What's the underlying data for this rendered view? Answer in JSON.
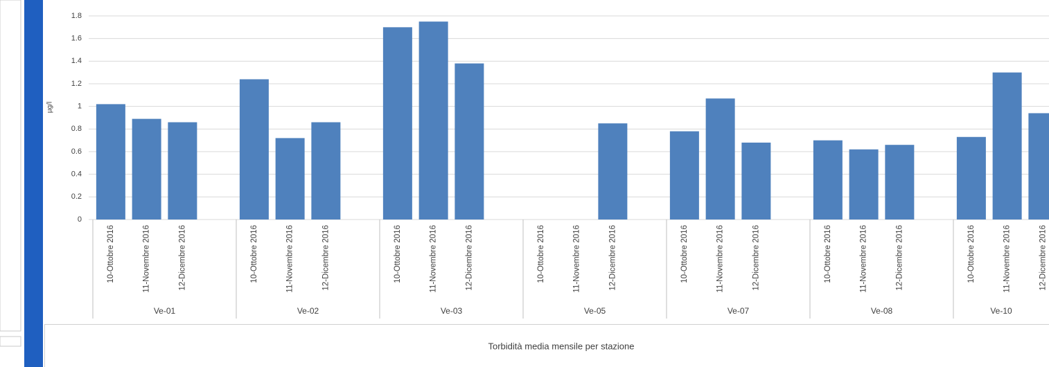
{
  "chart_data": {
    "type": "bar",
    "title": "Torbidità media mensile per stazione",
    "y_label": "µg/l",
    "categories": [
      "10-Ottobre 2016",
      "11-Novembre 2016",
      "12-Dicembre 2016"
    ],
    "groups": [
      {
        "name": "Ve-01",
        "values": [
          1.02,
          0.89,
          0.86
        ]
      },
      {
        "name": "Ve-02",
        "values": [
          1.24,
          0.72,
          0.86
        ]
      },
      {
        "name": "Ve-03",
        "values": [
          1.7,
          1.75,
          1.38
        ]
      },
      {
        "name": "Ve-05",
        "values": [
          null,
          null,
          0.85
        ]
      },
      {
        "name": "Ve-07",
        "values": [
          0.78,
          1.07,
          0.68
        ]
      },
      {
        "name": "Ve-08",
        "values": [
          0.7,
          0.62,
          0.66
        ]
      },
      {
        "name": "Ve-10",
        "values": [
          0.73,
          1.3,
          0.94
        ]
      }
    ],
    "color": "#4f81bd",
    "ylim": [
      0,
      1.8
    ],
    "yticks": [
      0,
      0.2,
      0.4,
      0.6,
      0.8,
      1,
      1.2,
      1.4,
      1.6,
      1.8
    ],
    "grid": true
  }
}
